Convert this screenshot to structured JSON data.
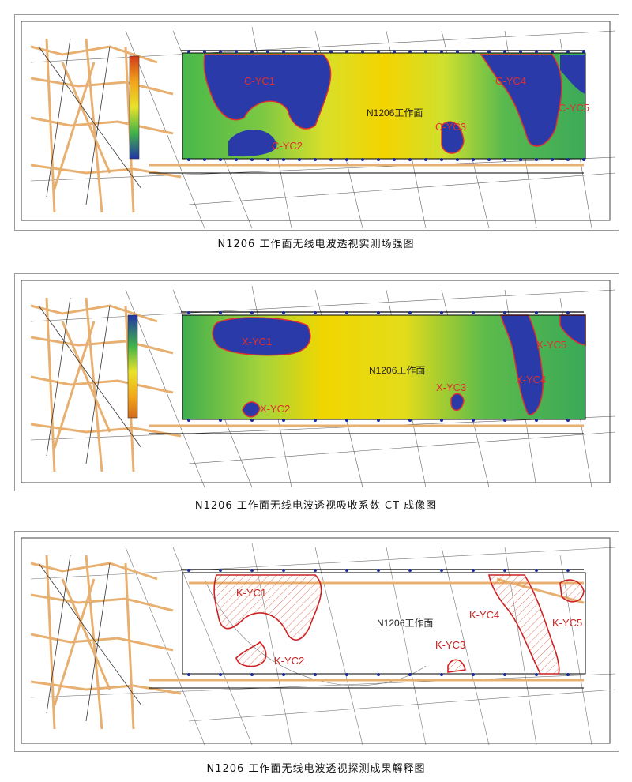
{
  "panels": [
    {
      "caption": "N1206 工作面无线电波透视实测场强图",
      "face_label": "N1206工作面",
      "anomalies": [
        "C-YC1",
        "C-YC2",
        "C-YC3",
        "C-YC4",
        "C-YC5"
      ]
    },
    {
      "caption": "N1206 工作面无线电波透视吸收系数 CT 成像图",
      "face_label": "N1206工作面",
      "anomalies": [
        "X-YC1",
        "X-YC2",
        "X-YC3",
        "X-YC4",
        "X-YC5"
      ]
    },
    {
      "caption": "N1206 工作面无线电波透视探测成果解释图",
      "face_label": "N1206工作面",
      "anomalies": [
        "K-YC1",
        "K-YC2",
        "K-YC3",
        "K-YC4",
        "K-YC5"
      ]
    }
  ],
  "colors": {
    "anomaly_text": "#e03030",
    "low_field": "#2a3aa8",
    "high_field": "#f2d800",
    "mid_field": "#6cc24a",
    "roadway": "#e8b070",
    "hatch": "#e07a6a"
  }
}
